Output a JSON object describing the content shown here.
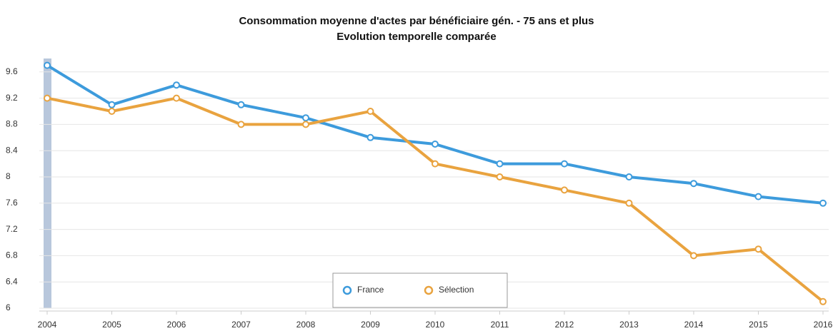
{
  "chart_data": {
    "type": "line",
    "title": [
      "Consommation moyenne d'actes par bénéficiaire gén. - 75 ans et plus",
      "Evolution temporelle comparée"
    ],
    "categories": [
      "2004",
      "2005",
      "2006",
      "2007",
      "2008",
      "2009",
      "2010",
      "2011",
      "2012",
      "2013",
      "2014",
      "2015",
      "2016"
    ],
    "series": [
      {
        "name": "France",
        "color": "#3d9bdc",
        "values": [
          9.7,
          9.1,
          9.4,
          9.1,
          8.9,
          8.6,
          8.5,
          8.2,
          8.2,
          8.0,
          7.9,
          7.7,
          7.6
        ]
      },
      {
        "name": "Sélection",
        "color": "#e9a33f",
        "values": [
          9.2,
          9.0,
          9.2,
          8.8,
          8.8,
          9.0,
          8.2,
          8.0,
          7.8,
          7.6,
          6.8,
          6.9,
          6.1
        ]
      }
    ],
    "ylim": [
      6,
      9.8
    ],
    "yticks": [
      6,
      6.4,
      6.8,
      7.2,
      7.6,
      8,
      8.4,
      8.8,
      9.2,
      9.6
    ],
    "grid": true,
    "legend": "bottom"
  }
}
